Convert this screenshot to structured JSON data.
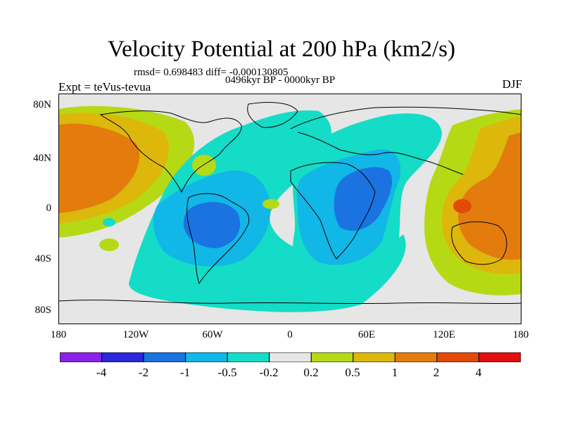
{
  "title": "Velocity Potential at 200 hPa (km2/s)",
  "stats": "rmsd= 0.698483 diff= -0.000130805",
  "period": "0496kyr BP - 0000kyr BP",
  "experiment": "Expt = teVus-tevua",
  "season": "DJF",
  "axes": {
    "y_ticks": [
      "80N",
      "40N",
      "0",
      "40S",
      "80S"
    ],
    "x_ticks": [
      "180",
      "120W",
      "60W",
      "0",
      "60E",
      "120E",
      "180"
    ]
  },
  "colorbar": {
    "labels": [
      "-4",
      "-2",
      "-1",
      "-0.5",
      "-0.2",
      "0.2",
      "0.5",
      "1",
      "2",
      "4"
    ],
    "colors": [
      "#8b22e6",
      "#2a28d8",
      "#1a73e0",
      "#11b7e6",
      "#15dcc6",
      "#e6e6e6",
      "#b6d916",
      "#ddb70c",
      "#e37c0c",
      "#e24a0a",
      "#e20f0f"
    ]
  },
  "colors": {
    "land_outline": "#000000",
    "neutral": "#e6e6e6"
  }
}
